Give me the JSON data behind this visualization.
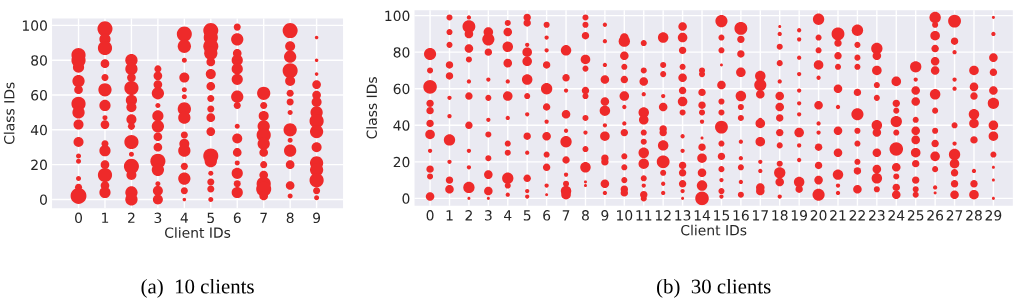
{
  "chart_data": [
    {
      "type": "bubble",
      "xlabel": "Client IDs",
      "ylabel": "Class IDs",
      "xlim": [
        -1,
        10
      ],
      "xticks": [
        0,
        1,
        2,
        3,
        4,
        5,
        6,
        7,
        8,
        9
      ],
      "ylim": [
        -5,
        104
      ],
      "yticks": [
        0,
        20,
        40,
        60,
        80,
        100
      ],
      "grid": true,
      "annotations": [
        "(a)  10 clients"
      ],
      "series": [
        {
          "color": "#ee2a2a",
          "x": [
            0,
            0,
            0,
            0,
            0,
            0,
            0,
            0,
            0,
            0,
            0,
            0,
            0,
            0
          ],
          "values": [
            83,
            80,
            76,
            68,
            63,
            55,
            50,
            43,
            33,
            25,
            22,
            12,
            7,
            2
          ],
          "sizes": [
            0.8,
            0.8,
            0.5,
            0.6,
            0.3,
            0.8,
            0.6,
            0.4,
            0.4,
            0.1,
            0.1,
            0.1,
            0.2,
            1
          ]
        },
        {
          "color": "#ee2a2a",
          "x": [
            1,
            1,
            1,
            1,
            1,
            1,
            1,
            1,
            1,
            1,
            1,
            1,
            1,
            1,
            1
          ],
          "values": [
            98,
            92,
            87,
            78,
            70,
            63,
            54,
            47,
            43,
            32,
            28,
            20,
            14,
            8,
            4
          ],
          "sizes": [
            0.9,
            0.5,
            0.8,
            0.3,
            0.2,
            0.7,
            0.5,
            0.1,
            0.3,
            0.2,
            0.5,
            0.3,
            0.8,
            0.3,
            0.5
          ]
        },
        {
          "color": "#ee2a2a",
          "x": [
            2,
            2,
            2,
            2,
            2,
            2,
            2,
            2,
            2,
            2,
            2,
            2,
            2,
            2
          ],
          "values": [
            80,
            75,
            70,
            64,
            57,
            53,
            46,
            42,
            33,
            26,
            19,
            14,
            4,
            0
          ],
          "sizes": [
            0.6,
            0.6,
            0.3,
            0.8,
            0.5,
            0.4,
            0.4,
            0.2,
            0.8,
            0.1,
            0.9,
            0.4,
            0.6,
            0.6
          ]
        },
        {
          "color": "#ee2a2a",
          "x": [
            3,
            3,
            3,
            3,
            3,
            3,
            3,
            3,
            3,
            3,
            3,
            3,
            3,
            3
          ],
          "values": [
            75,
            71,
            66,
            61,
            54,
            48,
            42,
            36,
            30,
            22,
            17,
            9,
            5,
            0
          ],
          "sizes": [
            0.2,
            0.3,
            0.3,
            0.6,
            0.1,
            0.5,
            0.6,
            0.3,
            0.3,
            0.9,
            0.6,
            0.1,
            0.4,
            0.4
          ]
        },
        {
          "color": "#ee2a2a",
          "x": [
            4,
            4,
            4,
            4,
            4,
            4,
            4,
            4,
            4,
            4,
            4,
            4,
            4,
            4,
            4
          ],
          "values": [
            95,
            88,
            80,
            70,
            63,
            59,
            52,
            47,
            37,
            32,
            28,
            19,
            12,
            5,
            0
          ],
          "sizes": [
            0.9,
            0.7,
            0.1,
            0.4,
            0.1,
            0.1,
            0.7,
            0.6,
            0.2,
            0.4,
            0.6,
            0.2,
            0.6,
            0.2,
            0.05
          ]
        },
        {
          "color": "#ee2a2a",
          "x": [
            5,
            5,
            5,
            5,
            5,
            5,
            5,
            5,
            5,
            5,
            5,
            5,
            5,
            5,
            5,
            5,
            5
          ],
          "values": [
            97,
            93,
            88,
            84,
            79,
            72,
            65,
            58,
            52,
            47,
            39,
            25,
            22,
            15,
            10,
            6,
            0
          ],
          "sizes": [
            0.9,
            0.8,
            0.9,
            0.7,
            0.3,
            0.4,
            0.3,
            0.2,
            0.2,
            0.3,
            0.3,
            0.9,
            0.6,
            0.1,
            0.2,
            0.2,
            0.1
          ]
        },
        {
          "color": "#ee2a2a",
          "x": [
            6,
            6,
            6,
            6,
            6,
            6,
            6,
            6,
            6,
            6,
            6,
            6,
            6,
            6,
            6
          ],
          "values": [
            99,
            92,
            84,
            80,
            75,
            69,
            59,
            54,
            42,
            35,
            27,
            21,
            15,
            9,
            4
          ],
          "sizes": [
            0.2,
            0.6,
            0.3,
            0.5,
            0.5,
            0.5,
            0.6,
            0.2,
            0.1,
            0.4,
            0.3,
            0.1,
            0.5,
            0.2,
            0.5
          ]
        },
        {
          "color": "#ee2a2a",
          "x": [
            7,
            7,
            7,
            7,
            7,
            7,
            7,
            7,
            7,
            7,
            7,
            7
          ],
          "values": [
            61,
            54,
            48,
            42,
            37,
            32,
            27,
            20,
            14,
            9,
            6,
            2
          ],
          "sizes": [
            0.7,
            0.2,
            0.4,
            0.6,
            0.8,
            0.6,
            0.3,
            0.2,
            0.3,
            0.8,
            0.9,
            0.3
          ]
        },
        {
          "color": "#ee2a2a",
          "x": [
            8,
            8,
            8,
            8,
            8,
            8,
            8,
            8,
            8,
            8,
            8,
            8,
            8,
            8
          ],
          "values": [
            97,
            88,
            82,
            74,
            68,
            61,
            56,
            50,
            40,
            34,
            28,
            20,
            8,
            2
          ],
          "sizes": [
            0.9,
            0.4,
            0.6,
            0.9,
            0.4,
            0.2,
            0.2,
            0.1,
            0.7,
            0.1,
            0.6,
            0.3,
            0.3,
            0.1
          ]
        },
        {
          "color": "#ee2a2a",
          "x": [
            9,
            9,
            9,
            9,
            9,
            9,
            9,
            9,
            9,
            9,
            9,
            9,
            9,
            9,
            9
          ],
          "values": [
            93,
            80,
            72,
            66,
            60,
            56,
            50,
            45,
            39,
            30,
            21,
            17,
            11,
            5,
            1
          ],
          "sizes": [
            0.05,
            0.05,
            0.05,
            0.3,
            0.3,
            0.4,
            0.6,
            0.8,
            0.7,
            0.4,
            0.7,
            0.7,
            0.8,
            0.2,
            0.1
          ]
        }
      ]
    },
    {
      "type": "bubble",
      "xlabel": "Client IDs",
      "ylabel": "Class IDs",
      "xlim": [
        -0.8,
        30
      ],
      "xticks": [
        0,
        1,
        2,
        3,
        4,
        5,
        6,
        7,
        8,
        9,
        10,
        11,
        12,
        13,
        14,
        15,
        16,
        17,
        18,
        19,
        20,
        21,
        22,
        23,
        24,
        25,
        26,
        27,
        28,
        29
      ],
      "ylim": [
        -4,
        103
      ],
      "yticks": [
        0,
        20,
        40,
        60,
        80,
        100
      ],
      "grid": true,
      "annotations": [
        "(b)  30 clients"
      ],
      "series": [
        {
          "color": "#ee2a2a",
          "x": [
            0,
            0,
            0,
            0,
            0,
            0,
            0,
            0,
            0,
            0,
            0
          ],
          "values": [
            79,
            70,
            61,
            52,
            48,
            41,
            35,
            26,
            16,
            12,
            1
          ],
          "sizes": [
            0.8,
            0.2,
            1,
            0.3,
            0.3,
            0.3,
            0.5,
            0.1,
            0.3,
            0.2,
            0.4
          ]
        },
        {
          "color": "#ee2a2a",
          "x": [
            1,
            1,
            1,
            1,
            1,
            1,
            1,
            1,
            1,
            1,
            1
          ],
          "values": [
            99,
            91,
            84,
            73,
            67,
            55,
            45,
            32,
            20,
            10,
            5
          ],
          "sizes": [
            0.2,
            0.2,
            0.2,
            0.3,
            0.3,
            0.1,
            0.1,
            0.7,
            0.1,
            0.3,
            0.4
          ]
        },
        {
          "color": "#ee2a2a",
          "x": [
            2,
            2,
            2,
            2,
            2,
            2,
            2,
            2,
            2,
            2,
            2,
            2
          ],
          "values": [
            99,
            94,
            90,
            82,
            76,
            64,
            56,
            40,
            26,
            17,
            6,
            0
          ],
          "sizes": [
            0.1,
            0.9,
            0.4,
            0.4,
            0.2,
            0.1,
            0.3,
            0.3,
            0.1,
            0.1,
            0.7,
            0.05
          ]
        },
        {
          "color": "#ee2a2a",
          "x": [
            3,
            3,
            3,
            3,
            3,
            3,
            3,
            3,
            3,
            3,
            3
          ],
          "values": [
            91,
            87,
            80,
            65,
            55,
            43,
            35,
            22,
            13,
            4,
            0
          ],
          "sizes": [
            0.5,
            0.8,
            0.3,
            0.1,
            0.2,
            0.1,
            0.2,
            0.2,
            0.4,
            0.4,
            0.05
          ]
        },
        {
          "color": "#ee2a2a",
          "x": [
            4,
            4,
            4,
            4,
            4,
            4,
            4,
            4,
            4,
            4,
            4,
            4
          ],
          "values": [
            96,
            91,
            83,
            74,
            64,
            56,
            44,
            30,
            25,
            11,
            7,
            2
          ],
          "sizes": [
            0.2,
            0.4,
            0.6,
            0.4,
            0.1,
            0.5,
            0.1,
            0.2,
            0.2,
            0.7,
            0.2,
            0.1
          ]
        },
        {
          "color": "#ee2a2a",
          "x": [
            5,
            5,
            5,
            5,
            5,
            5,
            5,
            5,
            5,
            5,
            5,
            5,
            5
          ],
          "values": [
            99,
            96,
            84,
            80,
            75,
            65,
            56,
            46,
            34,
            25,
            11,
            4,
            1
          ],
          "sizes": [
            0.3,
            0.3,
            0.1,
            0.5,
            0.5,
            0.6,
            0.2,
            0.1,
            0.3,
            0.1,
            0.3,
            0.1,
            0.1
          ]
        },
        {
          "color": "#ee2a2a",
          "x": [
            6,
            6,
            6,
            6,
            6,
            6,
            6,
            6,
            6,
            6,
            6,
            6
          ],
          "values": [
            95,
            88,
            81,
            73,
            60,
            50,
            42,
            34,
            24,
            17,
            7,
            2
          ],
          "sizes": [
            0.2,
            0.1,
            0.1,
            0.3,
            0.7,
            0.3,
            0.1,
            0.4,
            0.2,
            0.3,
            0.1,
            0.05
          ]
        },
        {
          "color": "#ee2a2a",
          "x": [
            7,
            7,
            7,
            7,
            7,
            7,
            7,
            7,
            7,
            7,
            7
          ],
          "values": [
            81,
            66,
            59,
            46,
            37,
            31,
            21,
            13,
            8,
            4,
            2
          ],
          "sizes": [
            0.6,
            0.3,
            0.1,
            0.4,
            0.1,
            0.7,
            0.3,
            0.1,
            0.2,
            0.6,
            0.5
          ]
        },
        {
          "color": "#ee2a2a",
          "x": [
            8,
            8,
            8,
            8,
            8,
            8,
            8,
            8,
            8,
            8,
            8,
            8,
            8
          ],
          "values": [
            99,
            95,
            89,
            76,
            71,
            59,
            56,
            44,
            36,
            27,
            17,
            9,
            7
          ],
          "sizes": [
            0.2,
            0.2,
            0.3,
            0.5,
            0.2,
            0.3,
            0.2,
            0.2,
            0.1,
            0.2,
            0.6,
            0.05,
            0.05
          ]
        },
        {
          "color": "#ee2a2a",
          "x": [
            9,
            9,
            9,
            9,
            9,
            9,
            9,
            9,
            9,
            9,
            9,
            9
          ],
          "values": [
            95,
            86,
            73,
            65,
            53,
            48,
            40,
            34,
            22,
            20,
            8,
            3
          ],
          "sizes": [
            0.1,
            0.1,
            0.1,
            0.4,
            0.4,
            0.6,
            0.1,
            0.5,
            0.3,
            0.3,
            0.4,
            0.1
          ]
        },
        {
          "color": "#ee2a2a",
          "x": [
            10,
            10,
            10,
            10,
            10,
            10,
            10,
            10,
            10,
            10,
            10,
            10,
            10,
            10
          ],
          "values": [
            88,
            86,
            78,
            72,
            65,
            56,
            50,
            41,
            36,
            23,
            17,
            10,
            5,
            3
          ],
          "sizes": [
            0.4,
            0.7,
            0.4,
            0.2,
            0.3,
            0.5,
            0.1,
            0.1,
            0.3,
            0.2,
            0.2,
            0.2,
            0.3,
            0.3
          ]
        },
        {
          "color": "#ee2a2a",
          "x": [
            11,
            11,
            11,
            11,
            11,
            11,
            11,
            11,
            11,
            11,
            11,
            11,
            11,
            11
          ],
          "values": [
            85,
            70,
            64,
            57,
            47,
            43,
            36,
            31,
            25,
            19,
            11,
            7,
            2,
            0
          ],
          "sizes": [
            0.2,
            0.2,
            0.4,
            0.1,
            0.6,
            0.5,
            0.2,
            0.2,
            0.6,
            0.6,
            0.2,
            0.1,
            0.3,
            0.2
          ]
        },
        {
          "color": "#ee2a2a",
          "x": [
            12,
            12,
            12,
            12,
            12,
            12,
            12,
            12,
            12,
            12,
            12,
            12
          ],
          "values": [
            88,
            73,
            68,
            56,
            50,
            38,
            36,
            29,
            20,
            14,
            8,
            3
          ],
          "sizes": [
            0.6,
            0.2,
            0.2,
            0.1,
            0.4,
            0.3,
            0.3,
            0.6,
            0.9,
            0.2,
            0.1,
            0.1
          ]
        },
        {
          "color": "#ee2a2a",
          "x": [
            13,
            13,
            13,
            13,
            13,
            13,
            13,
            13,
            13,
            13,
            13,
            13,
            13,
            13,
            13
          ],
          "values": [
            94,
            88,
            81,
            72,
            66,
            59,
            53,
            47,
            34,
            26,
            18,
            14,
            8,
            4,
            0
          ],
          "sizes": [
            0.4,
            0.5,
            0.3,
            0.2,
            0.4,
            0.3,
            0.5,
            0.2,
            0.1,
            0.1,
            0.3,
            0.3,
            0.3,
            0.1,
            0.05
          ]
        },
        {
          "color": "#ee2a2a",
          "x": [
            14,
            14,
            14,
            14,
            14,
            14,
            14,
            14,
            14,
            14,
            14,
            14
          ],
          "values": [
            70,
            68,
            58,
            51,
            47,
            42,
            33,
            28,
            22,
            14,
            7,
            0
          ],
          "sizes": [
            0.2,
            0.2,
            0.3,
            0.3,
            0.2,
            0.1,
            0.05,
            0.3,
            0.5,
            0.4,
            0.6,
            1
          ]
        },
        {
          "color": "#ee2a2a",
          "x": [
            15,
            15,
            15,
            15,
            15,
            15,
            15,
            15,
            15,
            15,
            15,
            15,
            15,
            15
          ],
          "values": [
            97,
            88,
            81,
            73,
            62,
            53,
            47,
            39,
            30,
            23,
            16,
            10,
            4,
            1
          ],
          "sizes": [
            0.8,
            0.2,
            0.2,
            0.05,
            0.4,
            0.2,
            0.2,
            0.9,
            0.2,
            0.3,
            0.2,
            0.1,
            0.2,
            0.1
          ]
        },
        {
          "color": "#ee2a2a",
          "x": [
            16,
            16,
            16,
            16,
            16,
            16,
            16,
            16,
            16,
            16,
            16,
            16
          ],
          "values": [
            93,
            87,
            79,
            69,
            56,
            50,
            44,
            31,
            22,
            17,
            9,
            2
          ],
          "sizes": [
            0.9,
            0.3,
            0.3,
            0.5,
            0.6,
            0.2,
            0.2,
            0.1,
            0.1,
            0.2,
            0.1,
            0.2
          ]
        },
        {
          "color": "#ee2a2a",
          "x": [
            17,
            17,
            17,
            17,
            17,
            17,
            17,
            17,
            17,
            17
          ],
          "values": [
            67,
            62,
            57,
            43,
            41,
            31,
            20,
            15,
            6,
            4
          ],
          "sizes": [
            0.6,
            0.8,
            0.4,
            0.1,
            0.5,
            0.5,
            0.1,
            0.1,
            0.4,
            0.4
          ]
        },
        {
          "color": "#ee2a2a",
          "x": [
            18,
            18,
            18,
            18,
            18,
            18,
            18,
            18,
            18,
            18,
            18,
            18,
            18,
            18
          ],
          "values": [
            94,
            90,
            83,
            74,
            64,
            56,
            50,
            44,
            36,
            29,
            19,
            14,
            9,
            1
          ],
          "sizes": [
            0.05,
            0.1,
            0.2,
            0.2,
            0.1,
            0.4,
            0.4,
            0.3,
            0.3,
            0.2,
            0.2,
            0.7,
            0.4,
            0.1
          ]
        },
        {
          "color": "#ee2a2a",
          "x": [
            19,
            19,
            19,
            19,
            19,
            19,
            19,
            19,
            19,
            19,
            19,
            19
          ],
          "values": [
            92,
            87,
            77,
            68,
            59,
            52,
            46,
            36,
            29,
            21,
            9,
            5
          ],
          "sizes": [
            0.1,
            0.1,
            0.1,
            0.1,
            0.1,
            0.1,
            0.1,
            0.5,
            0.1,
            0.1,
            0.6,
            0.3
          ]
        },
        {
          "color": "#ee2a2a",
          "x": [
            20,
            20,
            20,
            20,
            20,
            20,
            20,
            20,
            20,
            20,
            20,
            20
          ],
          "values": [
            98,
            88,
            81,
            73,
            66,
            51,
            41,
            36,
            28,
            18,
            10,
            2
          ],
          "sizes": [
            0.7,
            0.2,
            0.2,
            0.5,
            0.1,
            0.4,
            0.1,
            0.1,
            0.3,
            0.3,
            0.4,
            0.8
          ]
        },
        {
          "color": "#ee2a2a",
          "x": [
            21,
            21,
            21,
            21,
            21,
            21,
            21,
            21,
            21,
            21,
            21
          ],
          "values": [
            90,
            85,
            78,
            72,
            60,
            50,
            37,
            25,
            13,
            7,
            3
          ],
          "sizes": [
            0.9,
            0.3,
            0.3,
            0.2,
            0.4,
            0.1,
            0.4,
            0.4,
            0.6,
            0.1,
            0.1
          ]
        },
        {
          "color": "#ee2a2a",
          "x": [
            22,
            22,
            22,
            22,
            22,
            22,
            22,
            22,
            22,
            22,
            22
          ],
          "values": [
            92,
            84,
            77,
            72,
            58,
            46,
            37,
            30,
            20,
            15,
            5
          ],
          "sizes": [
            0.7,
            0.2,
            0.2,
            0.2,
            0.3,
            0.8,
            0.2,
            0.2,
            0.2,
            0.3,
            0.4
          ]
        },
        {
          "color": "#ee2a2a",
          "x": [
            23,
            23,
            23,
            23,
            23,
            23,
            23,
            23,
            23,
            23,
            23
          ],
          "values": [
            82,
            78,
            70,
            62,
            55,
            40,
            36,
            25,
            16,
            11,
            5
          ],
          "sizes": [
            0.7,
            0.4,
            0.5,
            0.2,
            0.2,
            0.6,
            0.4,
            0.4,
            0.4,
            0.6,
            0.2
          ]
        },
        {
          "color": "#ee2a2a",
          "x": [
            24,
            24,
            24,
            24,
            24,
            24,
            24,
            24,
            24,
            24
          ],
          "values": [
            64,
            52,
            48,
            42,
            36,
            27,
            17,
            12,
            6,
            2
          ],
          "sizes": [
            0.5,
            0.3,
            0.2,
            0.7,
            0.2,
            1,
            0.4,
            0.2,
            0.3,
            0.4
          ]
        },
        {
          "color": "#ee2a2a",
          "x": [
            25,
            25,
            25,
            25,
            25,
            25,
            25,
            25,
            25,
            25,
            25,
            25
          ],
          "values": [
            72,
            65,
            59,
            53,
            43,
            37,
            32,
            25,
            19,
            10,
            5,
            2
          ],
          "sizes": [
            0.7,
            0.1,
            0.4,
            0.4,
            0.2,
            0.4,
            0.4,
            0.5,
            0.3,
            0.3,
            0.2,
            0.2
          ]
        },
        {
          "color": "#ee2a2a",
          "x": [
            26,
            26,
            26,
            26,
            26,
            26,
            26,
            26,
            26,
            26,
            26,
            26,
            26,
            26
          ],
          "values": [
            99,
            95,
            89,
            82,
            75,
            70,
            57,
            48,
            37,
            30,
            23,
            16,
            6,
            3
          ],
          "sizes": [
            0.7,
            0.2,
            0.5,
            0.3,
            0.4,
            0.4,
            0.6,
            0.2,
            0.2,
            0.3,
            0.5,
            0.2,
            0.1,
            0.05
          ]
        },
        {
          "color": "#ee2a2a",
          "x": [
            27,
            27,
            27,
            27,
            27,
            27,
            27,
            27,
            27,
            27,
            27,
            27
          ],
          "values": [
            97,
            86,
            80,
            65,
            60,
            40,
            30,
            24,
            19,
            14,
            8,
            2
          ],
          "sizes": [
            0.9,
            0.3,
            0.1,
            0.1,
            0.1,
            0.2,
            0.1,
            0.7,
            0.5,
            0.3,
            0.3,
            0.4
          ]
        },
        {
          "color": "#ee2a2a",
          "x": [
            28,
            28,
            28,
            28,
            28,
            28,
            28,
            28,
            28
          ],
          "values": [
            70,
            61,
            56,
            46,
            41,
            32,
            15,
            8,
            2
          ],
          "sizes": [
            0.5,
            0.4,
            0.3,
            0.6,
            0.5,
            0.3,
            0.1,
            0.3,
            0.5
          ]
        },
        {
          "color": "#ee2a2a",
          "x": [
            29,
            29,
            29,
            29,
            29,
            29,
            29,
            29,
            29,
            29,
            29,
            29
          ],
          "values": [
            99,
            90,
            77,
            69,
            59,
            52,
            40,
            34,
            24,
            17,
            10,
            0
          ],
          "sizes": [
            0.05,
            0.1,
            0.4,
            0.3,
            0.4,
            0.7,
            0.5,
            0.5,
            0.2,
            0.05,
            0.05,
            0.05
          ]
        }
      ]
    }
  ]
}
